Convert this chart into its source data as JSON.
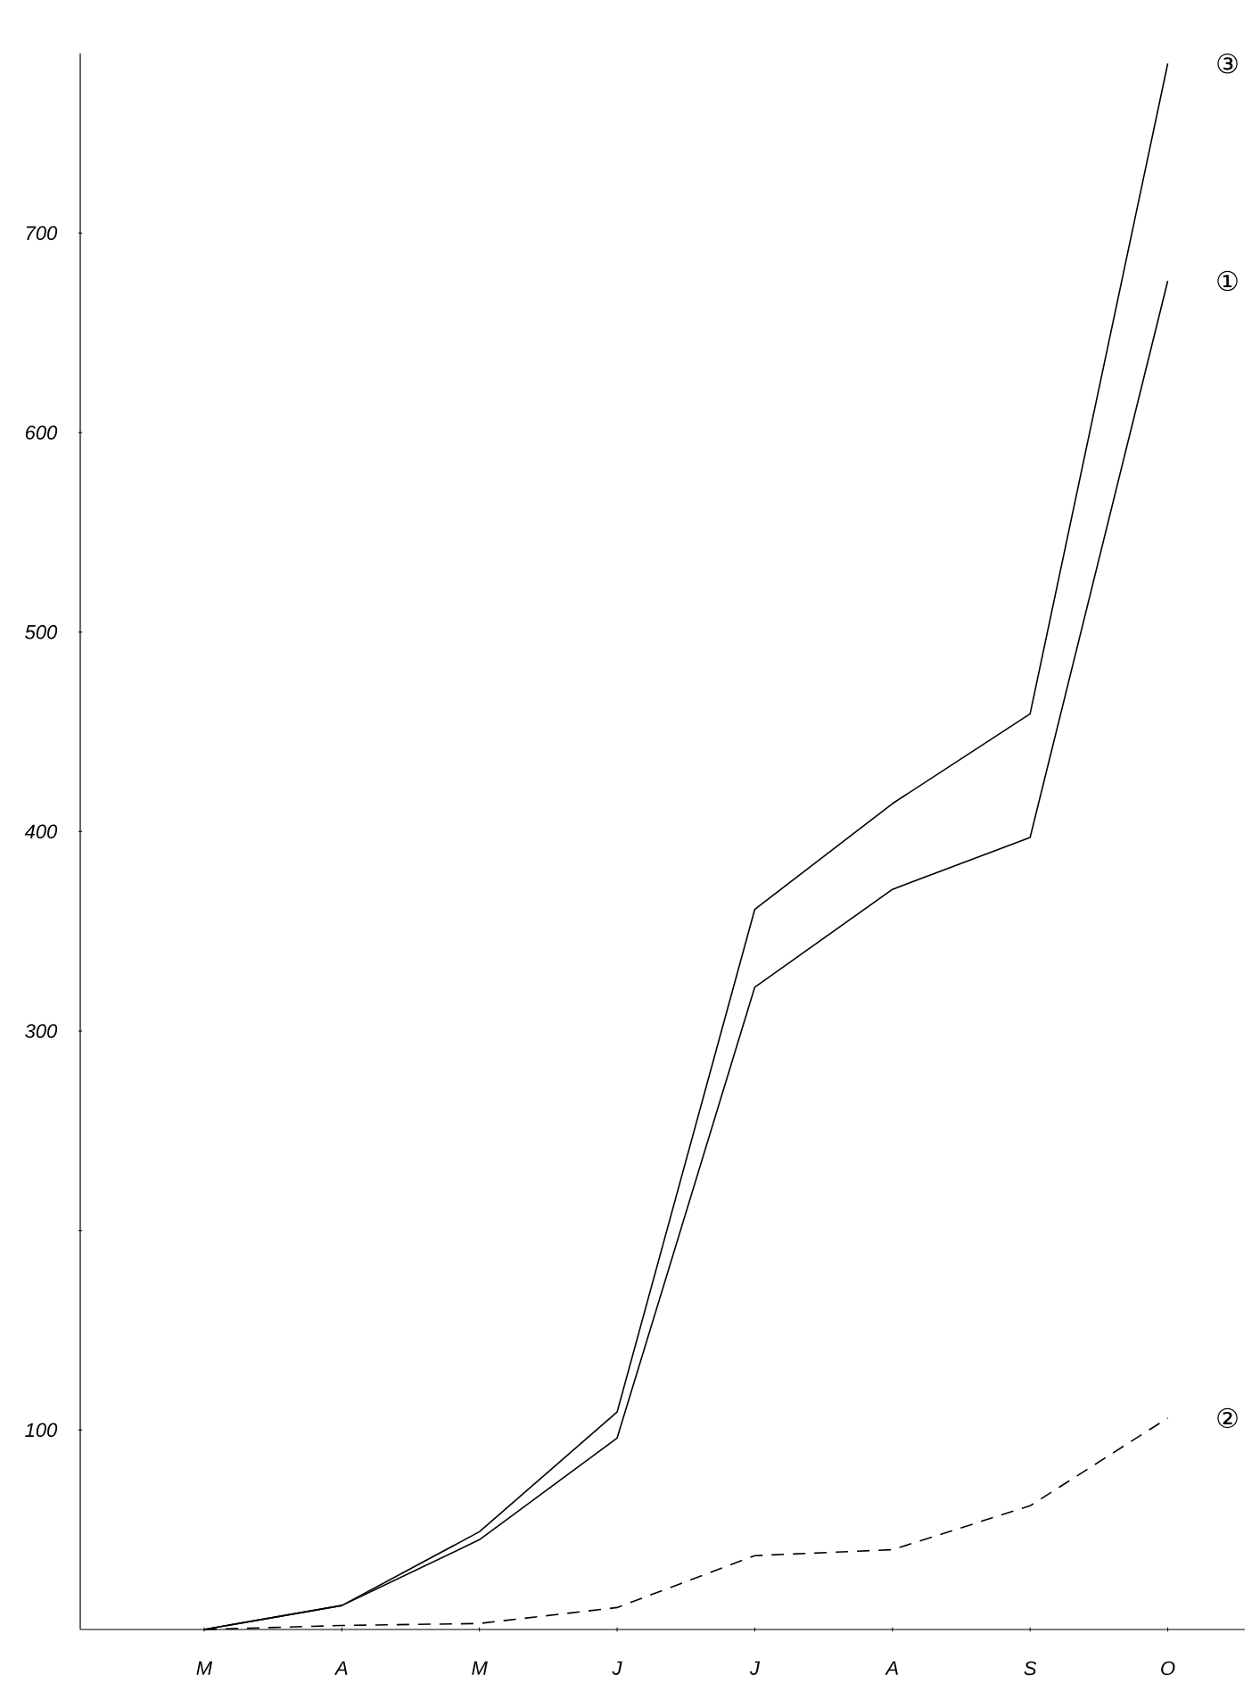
{
  "chart_data": {
    "type": "line",
    "categories": [
      "M",
      "A",
      "M",
      "J",
      "J",
      "A",
      "S",
      "O"
    ],
    "series": [
      {
        "name": "①",
        "color": "#000000",
        "line_style": "solid",
        "values": [
          0,
          12,
          45,
          96,
          322,
          371,
          397,
          676
        ]
      },
      {
        "name": "②",
        "color": "#000000",
        "line_style": "dashed",
        "values": [
          0,
          2,
          3,
          11,
          37,
          40,
          62,
          106
        ]
      },
      {
        "name": "③",
        "color": "#000000",
        "line_style": "solid",
        "values": [
          0,
          12,
          49,
          109,
          361,
          414,
          459,
          785
        ]
      }
    ],
    "ylim": [
      0,
      790
    ],
    "yticks": [
      {
        "value": 100,
        "label": "100"
      },
      {
        "value": 200,
        "label": null
      },
      300,
      400,
      500,
      600,
      700
    ],
    "grid": false,
    "legend": false,
    "marker": "none"
  }
}
